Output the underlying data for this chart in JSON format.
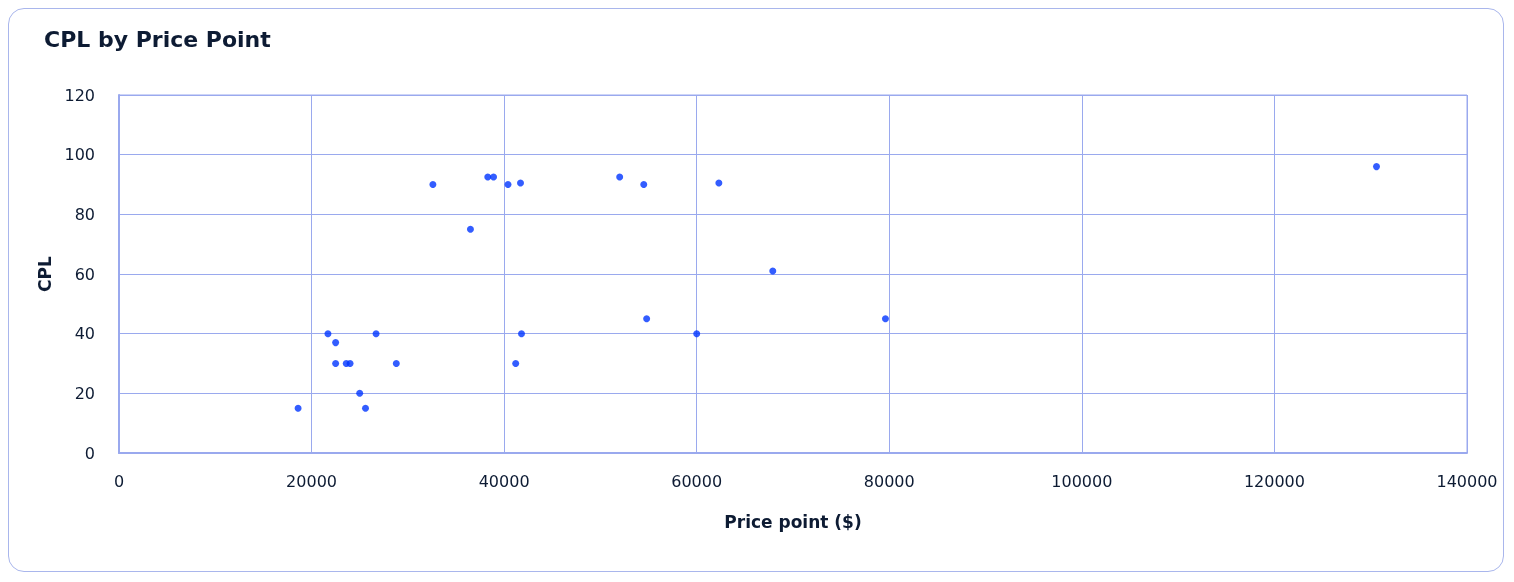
{
  "chart_data": {
    "type": "scatter",
    "title": "CPL by Price Point",
    "xlabel": "Price point ($)",
    "ylabel": "CPL",
    "x": [
      18600,
      21700,
      22500,
      22500,
      23600,
      24000,
      25000,
      25600,
      26700,
      28800,
      32600,
      36500,
      38300,
      38900,
      40400,
      41700,
      41200,
      41800,
      52000,
      54500,
      62300,
      67900,
      54800,
      60000,
      79600,
      130600
    ],
    "series": [
      {
        "color": "#0035ff",
        "values": [
          15,
          40,
          37,
          30,
          30,
          30,
          20,
          15,
          40,
          30,
          90,
          75,
          92.5,
          92.5,
          90,
          90.5,
          30,
          40,
          92.5,
          90,
          90.5,
          61,
          45,
          40,
          45,
          96
        ]
      }
    ],
    "xlim": [
      0,
      140000
    ],
    "xticks": [
      0,
      20000,
      40000,
      60000,
      80000,
      100000,
      120000,
      140000
    ],
    "ylim": [
      0,
      120
    ],
    "yticks": [
      0,
      20,
      40,
      60,
      80,
      100,
      120
    ],
    "grid": true,
    "marker": "circle"
  }
}
